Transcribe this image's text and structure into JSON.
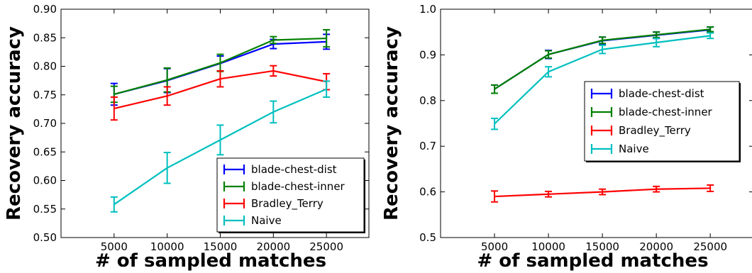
{
  "chart_data": [
    {
      "type": "line",
      "xlabel": "# of sampled matches",
      "ylabel": "Recovery accuracy",
      "xlim": [
        0,
        29000
      ],
      "ylim": [
        0.5,
        0.9
      ],
      "xticks": [
        5000,
        10000,
        15000,
        20000,
        25000
      ],
      "yticks": [
        0.5,
        0.55,
        0.6,
        0.65,
        0.7,
        0.75,
        0.8,
        0.85,
        0.9
      ],
      "ytick_decimals": 2,
      "grid": false,
      "legend_position": "bottom-right",
      "x": [
        5000,
        10000,
        15000,
        20000,
        25000
      ],
      "series": [
        {
          "name": "blade-chest-dist",
          "color": "#0000ff",
          "values": [
            0.751,
            0.775,
            0.805,
            0.839,
            0.843
          ],
          "errors": [
            0.019,
            0.021,
            0.013,
            0.008,
            0.013
          ]
        },
        {
          "name": "blade-chest-inner",
          "color": "#008000",
          "values": [
            0.751,
            0.776,
            0.806,
            0.846,
            0.849
          ],
          "errors": [
            0.014,
            0.021,
            0.015,
            0.006,
            0.015
          ]
        },
        {
          "name": "Bradley_Terry",
          "color": "#ff0000",
          "values": [
            0.726,
            0.748,
            0.778,
            0.792,
            0.773
          ],
          "errors": [
            0.02,
            0.016,
            0.014,
            0.009,
            0.014
          ]
        },
        {
          "name": "Naive",
          "color": "#00bfbf",
          "values": [
            0.558,
            0.622,
            0.671,
            0.72,
            0.76
          ],
          "errors": [
            0.013,
            0.027,
            0.026,
            0.019,
            0.014
          ]
        }
      ]
    },
    {
      "type": "line",
      "xlabel": "# of sampled matches",
      "ylabel": "Recovery accuracy",
      "xlim": [
        0,
        29000
      ],
      "ylim": [
        0.5,
        1.0
      ],
      "xticks": [
        5000,
        10000,
        15000,
        20000,
        25000
      ],
      "yticks": [
        0.5,
        0.6,
        0.7,
        0.8,
        0.9,
        1.0
      ],
      "ytick_decimals": 1,
      "grid": false,
      "legend_position": "center-right",
      "x": [
        5000,
        10000,
        15000,
        20000,
        25000
      ],
      "series": [
        {
          "name": "blade-chest-dist",
          "color": "#0000ff",
          "values": [
            0.825,
            0.901,
            0.931,
            0.943,
            0.955
          ],
          "errors": [
            0.009,
            0.009,
            0.008,
            0.007,
            0.006
          ]
        },
        {
          "name": "blade-chest-inner",
          "color": "#008000",
          "values": [
            0.825,
            0.901,
            0.932,
            0.944,
            0.956
          ],
          "errors": [
            0.009,
            0.008,
            0.007,
            0.006,
            0.005
          ]
        },
        {
          "name": "Bradley_Terry",
          "color": "#ff0000",
          "values": [
            0.59,
            0.595,
            0.6,
            0.606,
            0.608
          ],
          "errors": [
            0.012,
            0.006,
            0.006,
            0.006,
            0.007
          ]
        },
        {
          "name": "Naive",
          "color": "#00bfbf",
          "values": [
            0.749,
            0.863,
            0.912,
            0.927,
            0.942
          ],
          "errors": [
            0.012,
            0.011,
            0.009,
            0.009,
            0.006
          ]
        }
      ]
    }
  ]
}
